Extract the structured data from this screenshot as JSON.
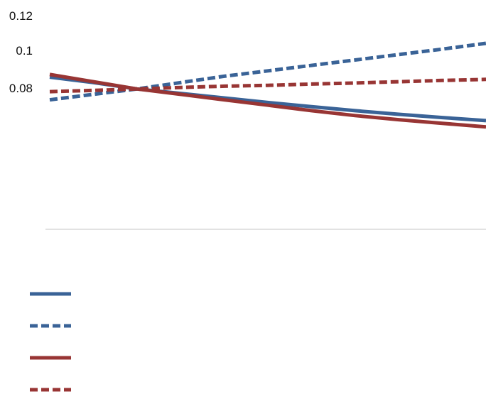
{
  "chart_data": {
    "type": "line",
    "x": [
      0,
      1,
      2,
      3,
      4,
      5,
      6,
      7,
      8,
      9,
      10
    ],
    "y_ticks": [
      "0.12",
      "0.1",
      "0.08"
    ],
    "y_tick_values": [
      0.12,
      0.1,
      0.08
    ],
    "ylim": [
      0.03,
      0.12
    ],
    "grid": false,
    "legend_position": "bottom-left",
    "legend_labels_visible": false,
    "series": [
      {
        "color": "#3a6397",
        "style": "solid",
        "values": [
          0.086,
          0.083,
          0.0795,
          0.077,
          0.0745,
          0.072,
          0.0697,
          0.0675,
          0.0655,
          0.0637,
          0.062
        ]
      },
      {
        "color": "#3a6397",
        "style": "dashed",
        "values": [
          0.0735,
          0.0765,
          0.0795,
          0.083,
          0.0865,
          0.0895,
          0.0925,
          0.0955,
          0.0985,
          0.1015,
          0.1047
        ]
      },
      {
        "color": "#983534",
        "style": "solid",
        "values": [
          0.0875,
          0.0835,
          0.0795,
          0.0765,
          0.0735,
          0.0705,
          0.0675,
          0.0648,
          0.0625,
          0.0605,
          0.0585
        ]
      },
      {
        "color": "#983534",
        "style": "dashed",
        "values": [
          0.078,
          0.0787,
          0.0795,
          0.0803,
          0.081,
          0.0815,
          0.0822,
          0.0828,
          0.0835,
          0.0842,
          0.0848
        ]
      }
    ]
  }
}
